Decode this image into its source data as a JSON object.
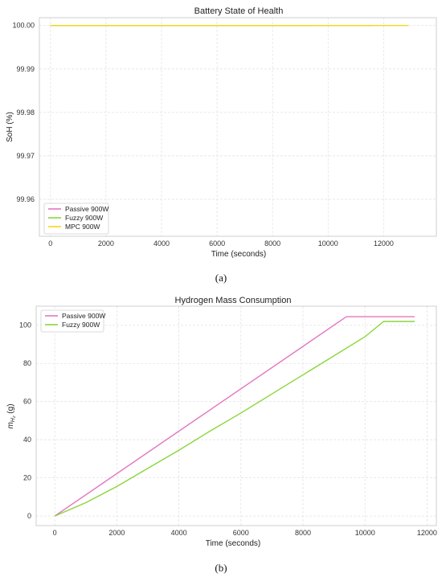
{
  "figure": {
    "caption_a": "(a)",
    "caption_b": "(b)"
  },
  "chart_data": [
    {
      "type": "line",
      "title": "Battery State of Health",
      "xlabel": "Time (seconds)",
      "ylabel": "SoH (%)",
      "xlim": [
        -400,
        13900
      ],
      "ylim": [
        99.9515,
        100.0018
      ],
      "xticks": [
        0,
        2000,
        4000,
        6000,
        8000,
        10000,
        12000
      ],
      "yticks": [
        99.96,
        99.97,
        99.98,
        99.99,
        100.0
      ],
      "ytick_labels": [
        "99.96",
        "99.97",
        "99.98",
        "99.99",
        "100.00"
      ],
      "grid": true,
      "legend_position": "bottom-left",
      "series": [
        {
          "name": "Passive 900W",
          "color": "#e377c2",
          "x": [
            0,
            9400
          ],
          "y": [
            100.0,
            100.0
          ]
        },
        {
          "name": "Fuzzy 900W",
          "color": "#8bd63b",
          "x": [
            0,
            11600
          ],
          "y": [
            100.0,
            100.0
          ]
        },
        {
          "name": "MPC 900W",
          "color": "#f1d81c",
          "x": [
            0,
            12900
          ],
          "y": [
            100.0,
            100.0
          ]
        }
      ]
    },
    {
      "type": "line",
      "title": "Hydrogen Mass Consumption",
      "xlabel": "Time (seconds)",
      "ylabel": "m_H2 (g)",
      "ylabel_main": "m",
      "ylabel_sub": "H₂",
      "ylabel_unit": " (g)",
      "xlim": [
        -600,
        12300
      ],
      "ylim": [
        -5,
        110
      ],
      "xticks": [
        0,
        2000,
        4000,
        6000,
        8000,
        10000,
        12000
      ],
      "yticks": [
        0,
        20,
        40,
        60,
        80,
        100
      ],
      "grid": true,
      "legend_position": "top-left",
      "series": [
        {
          "name": "Passive 900W",
          "color": "#e377c2",
          "x": [
            0,
            9400,
            11600
          ],
          "y": [
            0,
            104.5,
            104.5
          ]
        },
        {
          "name": "Fuzzy 900W",
          "color": "#8bd63b",
          "x": [
            0,
            1000,
            2000,
            3000,
            4000,
            5000,
            6000,
            7000,
            8000,
            9000,
            10000,
            10600,
            11600
          ],
          "y": [
            0,
            7,
            15.5,
            25,
            34.5,
            44.5,
            54,
            64,
            74,
            84,
            94,
            102,
            102
          ]
        }
      ]
    }
  ]
}
